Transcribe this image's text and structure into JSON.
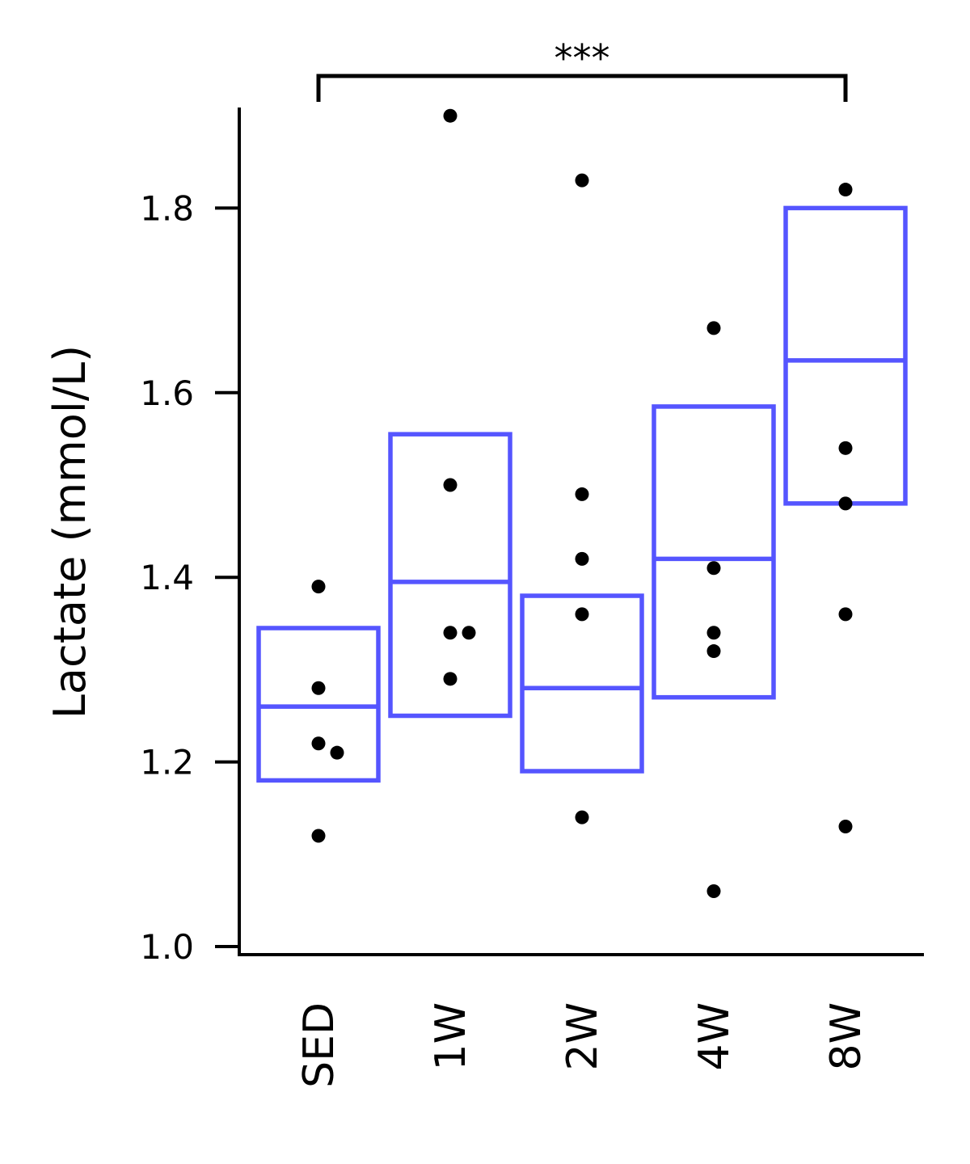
{
  "chart_data": {
    "type": "box",
    "title": "",
    "xlabel": "",
    "ylabel": "Lactate (mmol/L)",
    "ylim": [
      1.0,
      1.9
    ],
    "yticks": [
      "1.0",
      "1.2",
      "1.4",
      "1.6",
      "1.8"
    ],
    "categories": [
      "SED",
      "1W",
      "2W",
      "4W",
      "8W"
    ],
    "box_color": "#5555ff",
    "point_color": "#000000",
    "grid": false,
    "legend": "none",
    "boxes": [
      {
        "category": "SED",
        "q1": 1.18,
        "median": 1.26,
        "q3": 1.345
      },
      {
        "category": "1W",
        "q1": 1.25,
        "median": 1.395,
        "q3": 1.555
      },
      {
        "category": "2W",
        "q1": 1.19,
        "median": 1.28,
        "q3": 1.38
      },
      {
        "category": "4W",
        "q1": 1.27,
        "median": 1.42,
        "q3": 1.585
      },
      {
        "category": "8W",
        "q1": 1.48,
        "median": 1.635,
        "q3": 1.8
      }
    ],
    "points": [
      {
        "category": "SED",
        "values": [
          1.39,
          1.28,
          1.22,
          1.21,
          1.12
        ]
      },
      {
        "category": "1W",
        "values": [
          1.9,
          1.5,
          1.34,
          1.34,
          1.29
        ]
      },
      {
        "category": "2W",
        "values": [
          1.83,
          1.49,
          1.42,
          1.36,
          1.14
        ]
      },
      {
        "category": "4W",
        "values": [
          1.67,
          1.41,
          1.34,
          1.32,
          1.06
        ]
      },
      {
        "category": "8W",
        "values": [
          1.82,
          1.54,
          1.48,
          1.36,
          1.13
        ]
      }
    ],
    "annotations": [
      {
        "type": "significance-bracket",
        "from": "SED",
        "to": "8W",
        "text": "***"
      }
    ]
  }
}
